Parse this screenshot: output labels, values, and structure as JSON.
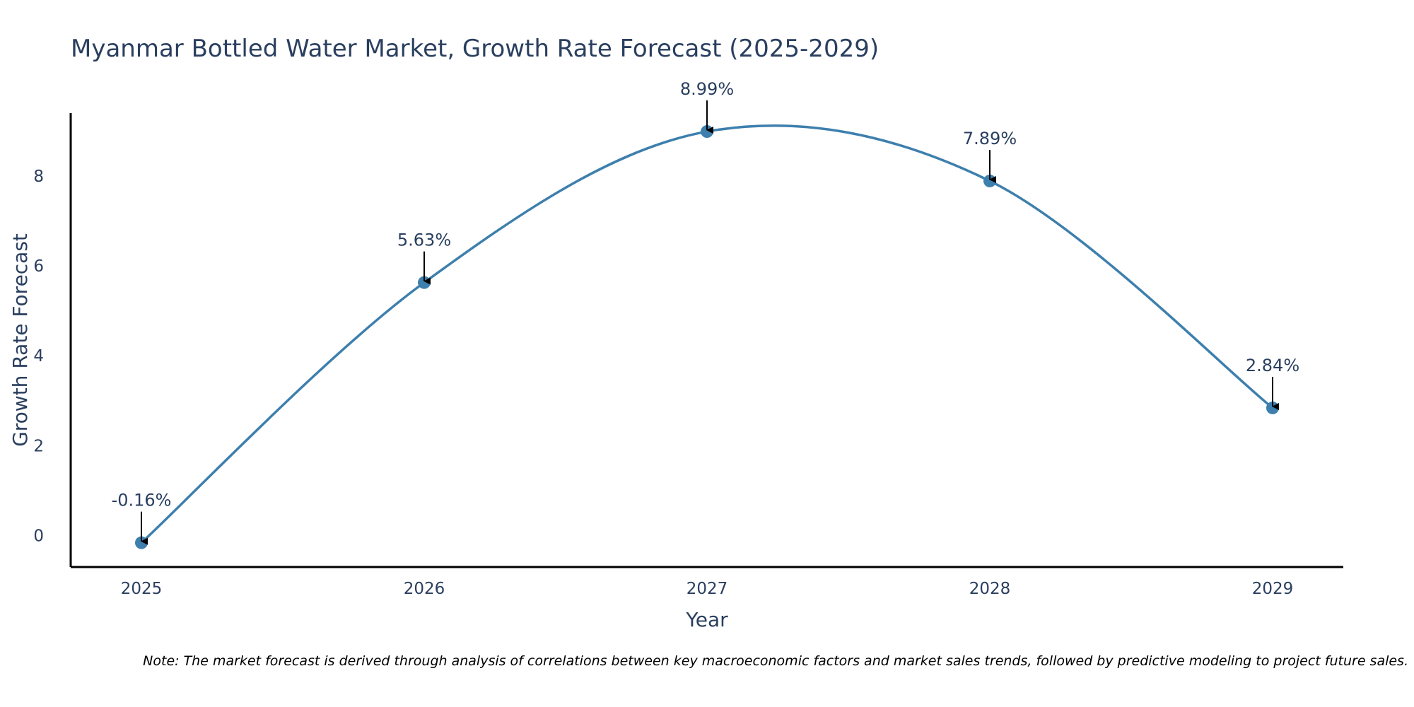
{
  "chart_data": {
    "type": "line",
    "title": "Myanmar Bottled Water Market, Growth Rate Forecast (2025-2029)",
    "xlabel": "Year",
    "ylabel": "Growth Rate Forecast",
    "categories": [
      "2025",
      "2026",
      "2027",
      "2028",
      "2029"
    ],
    "x": [
      2025,
      2026,
      2027,
      2028,
      2029
    ],
    "values": [
      -0.16,
      5.63,
      8.99,
      7.89,
      2.84
    ],
    "data_labels": [
      "-0.16%",
      "5.63%",
      "8.99%",
      "7.89%",
      "2.84%"
    ],
    "xlim": [
      2024.75,
      2029.25
    ],
    "ylim": [
      -0.7,
      9.4
    ],
    "yticks": [
      0,
      2,
      4,
      6,
      8
    ],
    "ytick_labels": [
      "0",
      "2",
      "4",
      "6",
      "8"
    ],
    "grid": false,
    "line_shape": "spline",
    "line_color": "#3d7fad",
    "marker_color": "#3d7fad",
    "annotation_arrow_color": "#000000",
    "note": "Note: The market forecast is derived through analysis of correlations between key macroeconomic factors and market sales trends, followed by predictive modeling to project future sales."
  }
}
